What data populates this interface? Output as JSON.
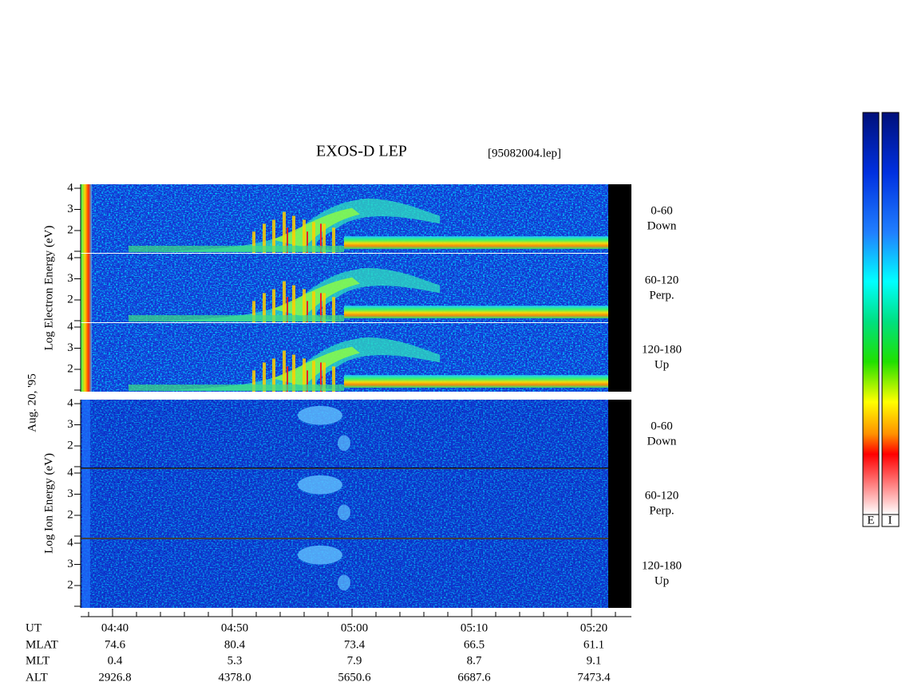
{
  "header": {
    "title": "EXOS-D LEP",
    "file": "[95082004.lep]",
    "date": "Aug. 20, '95"
  },
  "electron": {
    "ylabel": "Log  Electron  Energy (eV)",
    "yticks": [
      2,
      3,
      4
    ],
    "panels": [
      {
        "angle": "0-60",
        "direction": "Down"
      },
      {
        "angle": "60-120",
        "direction": "Perp."
      },
      {
        "angle": "120-180",
        "direction": "Up"
      }
    ]
  },
  "ion": {
    "ylabel": "Log  Ion  Energy (eV)",
    "yticks": [
      2,
      3,
      4
    ],
    "panels": [
      {
        "angle": "0-60",
        "direction": "Down"
      },
      {
        "angle": "60-120",
        "direction": "Perp."
      },
      {
        "angle": "120-180",
        "direction": "Up"
      }
    ]
  },
  "orbit": {
    "rows": [
      {
        "name": "UT",
        "values": [
          "04:40",
          "04:50",
          "05:00",
          "05:10",
          "05:20"
        ]
      },
      {
        "name": "MLAT",
        "values": [
          "74.6",
          "80.4",
          "73.4",
          "66.5",
          "61.1"
        ]
      },
      {
        "name": "MLT",
        "values": [
          "0.4",
          "5.3",
          "7.9",
          "8.7",
          "9.1"
        ]
      },
      {
        "name": "ALT",
        "values": [
          "2926.8",
          "4378.0",
          "5650.6",
          "6687.6",
          "7473.4"
        ]
      }
    ]
  },
  "colorbars": [
    "E",
    "I"
  ]
}
